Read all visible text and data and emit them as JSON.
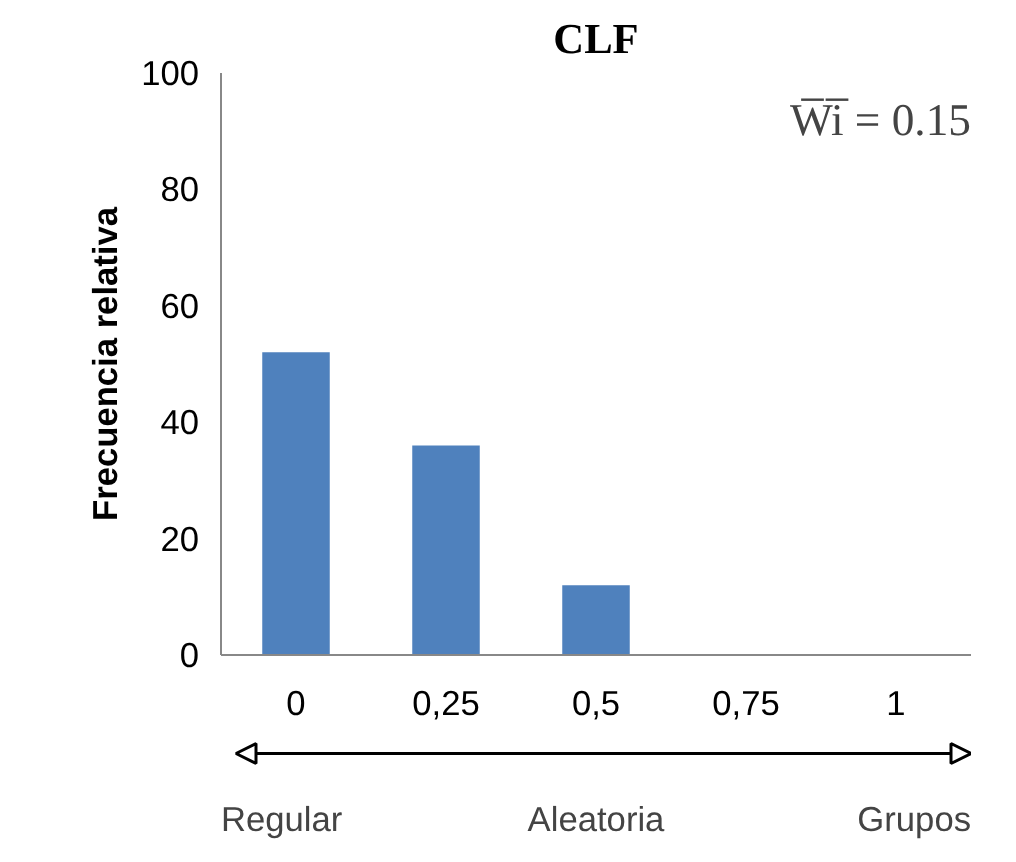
{
  "chart_data": {
    "type": "bar",
    "title": "CLF",
    "ylabel": "Frecuencia relativa",
    "categories": [
      "0",
      "0,25",
      "0,5",
      "0,75",
      "1"
    ],
    "values": [
      52,
      36,
      12,
      0,
      0
    ],
    "color": "#4f81bd",
    "ylim": [
      0,
      100
    ],
    "yticks": [
      0,
      20,
      40,
      60,
      80,
      100
    ],
    "grid": false,
    "annotations": [
      "W̅i̅ = 0.15",
      "Regular",
      "Aleatoria",
      "Grupos"
    ]
  }
}
